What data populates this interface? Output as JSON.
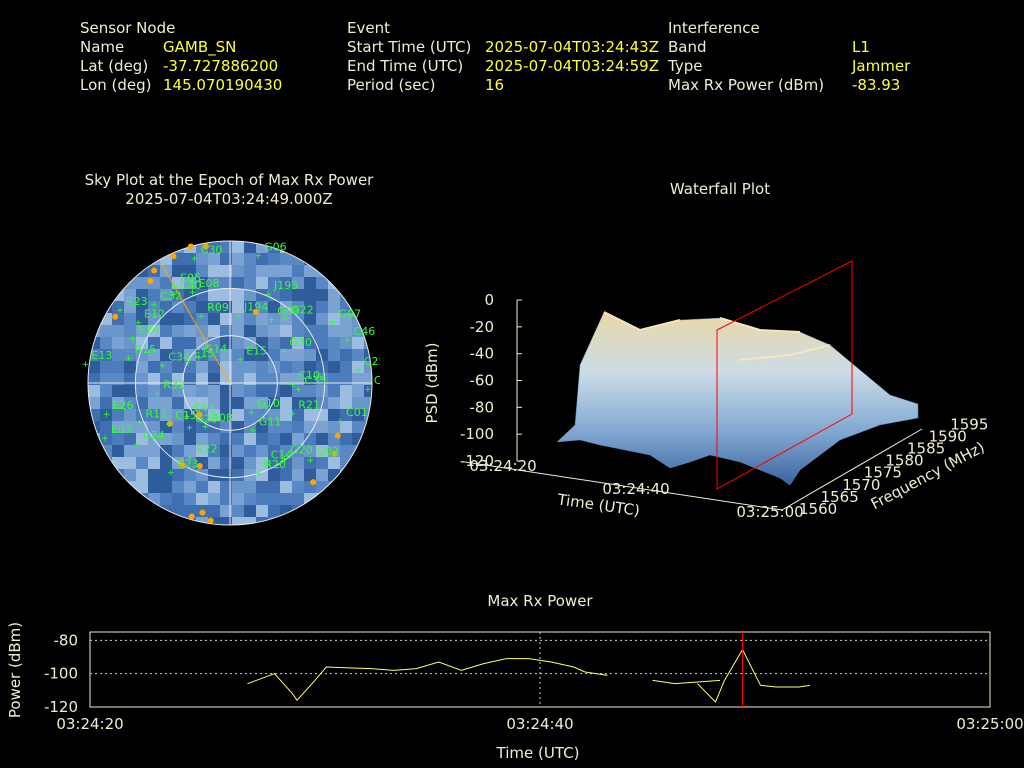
{
  "header": {
    "sensor": {
      "title": "Sensor Node",
      "name_label": "Name",
      "name": "GAMB_SN",
      "lat_label": "Lat (deg)",
      "lat": "-37.727886200",
      "lon_label": "Lon (deg)",
      "lon": "145.070190430"
    },
    "event": {
      "title": "Event",
      "start_label": "Start Time (UTC)",
      "start": "2025-07-04T03:24:43Z",
      "end_label": "End Time (UTC)",
      "end": "2025-07-04T03:24:59Z",
      "period_label": "Period (sec)",
      "period": "16"
    },
    "interference": {
      "title": "Interference",
      "band_label": "Band",
      "band": "L1",
      "type_label": "Type",
      "type": "Jammer",
      "maxrx_label": "Max Rx Power (dBm)",
      "maxrx": "-83.93"
    }
  },
  "colors": {
    "label": "#f0ecd0",
    "value": "#ffff33",
    "satellite": "#33ff33",
    "orange": "#ffa500",
    "marker": "#ff0000",
    "line": "#ffff66"
  },
  "chart_data": [
    {
      "type": "scatter",
      "name": "skyplot",
      "title": "Sky Plot at the Epoch of Max Rx Power",
      "subtitle": "2025-07-04T03:24:49.000Z",
      "satellites": [
        {
          "id": "G06",
          "az": 14,
          "el": 6
        },
        {
          "id": "C30",
          "az": 346,
          "el": 8
        },
        {
          "id": "J195",
          "az": 25,
          "el": 27
        },
        {
          "id": "E05",
          "az": 332,
          "el": 20
        },
        {
          "id": "C40",
          "az": 330,
          "el": 24
        },
        {
          "id": "E08",
          "az": 340,
          "el": 28
        },
        {
          "id": "R23",
          "az": 305,
          "el": 8
        },
        {
          "id": "E12",
          "az": 305,
          "el": 22
        },
        {
          "id": "C32",
          "az": 318,
          "el": 22
        },
        {
          "id": "G07",
          "az": 60,
          "el": 12
        },
        {
          "id": "G22",
          "az": 42,
          "el": 34
        },
        {
          "id": "G09",
          "az": 35,
          "el": 40
        },
        {
          "id": "C46",
          "az": 70,
          "el": 8
        },
        {
          "id": "J194",
          "az": 10,
          "el": 46
        },
        {
          "id": "R09",
          "az": 340,
          "el": 44
        },
        {
          "id": "C25",
          "az": 84,
          "el": 6
        },
        {
          "id": "G30",
          "az": 60,
          "el": 48
        },
        {
          "id": "E15",
          "az": 30,
          "el": 72
        },
        {
          "id": "E13",
          "az": 278,
          "el": 0
        },
        {
          "id": "E24",
          "az": 296,
          "el": 24
        },
        {
          "id": "R15",
          "az": 285,
          "el": 26
        },
        {
          "id": "G14",
          "az": 314,
          "el": 66
        },
        {
          "id": "E15",
          "az": 300,
          "el": 62
        },
        {
          "id": "C34",
          "az": 286,
          "el": 48
        },
        {
          "id": "R32",
          "az": 262,
          "el": 46
        },
        {
          "id": "C20",
          "az": 92,
          "el": 0
        },
        {
          "id": "C35",
          "az": 94,
          "el": 44
        },
        {
          "id": "C10",
          "az": 90,
          "el": 48
        },
        {
          "id": "R21",
          "az": 114,
          "el": 44
        },
        {
          "id": "C01",
          "az": 108,
          "el": 14
        },
        {
          "id": "R08",
          "az": 206,
          "el": 60
        },
        {
          "id": "G10",
          "az": 138,
          "el": 66
        },
        {
          "id": "G11",
          "az": 150,
          "el": 56
        },
        {
          "id": "G20",
          "az": 142,
          "el": 30
        },
        {
          "id": "G02",
          "az": 132,
          "el": 18
        },
        {
          "id": "R11",
          "az": 246,
          "el": 30
        },
        {
          "id": "C15",
          "az": 235,
          "el": 46
        },
        {
          "id": "G25",
          "az": 220,
          "el": 54
        },
        {
          "id": "C41",
          "az": 230,
          "el": 58
        },
        {
          "id": "E26",
          "az": 256,
          "el": 12
        },
        {
          "id": "E03",
          "az": 246,
          "el": 6
        },
        {
          "id": "C24",
          "az": 236,
          "el": 22
        },
        {
          "id": "C23",
          "az": 212,
          "el": 24
        },
        {
          "id": "R22",
          "az": 206,
          "el": 38
        },
        {
          "id": "R20",
          "az": 160,
          "el": 30
        },
        {
          "id": "C14",
          "az": 154,
          "el": 34
        }
      ],
      "interference_points": [
        {
          "az": 322,
          "el": 8
        },
        {
          "az": 326,
          "el": 4
        },
        {
          "az": 336,
          "el": 2
        },
        {
          "az": 344,
          "el": 0
        },
        {
          "az": 350,
          "el": 2
        },
        {
          "az": 300,
          "el": 6
        },
        {
          "az": 116,
          "el": 14
        },
        {
          "az": 124,
          "el": 10
        },
        {
          "az": 140,
          "el": 8
        },
        {
          "az": 188,
          "el": 2
        },
        {
          "az": 192,
          "el": 6
        },
        {
          "az": 196,
          "el": 2
        },
        {
          "az": 210,
          "el": 30
        },
        {
          "az": 236,
          "el": 44
        },
        {
          "az": 20,
          "el": 42
        },
        {
          "az": 200,
          "el": 34
        },
        {
          "az": 224,
          "el": 62
        }
      ],
      "jammer_direction_az": 330
    },
    {
      "type": "area",
      "name": "waterfall",
      "title": "Waterfall Plot",
      "xlabel": "Time (UTC)",
      "ylabel": "Frequency (MHz)",
      "zlabel": "PSD (dBm)",
      "x_ticks": [
        "03:24:20",
        "03:24:40",
        "03:25:00"
      ],
      "y_ticks": [
        "1560",
        "1565",
        "1570",
        "1575",
        "1580",
        "1585",
        "1590",
        "1595"
      ],
      "z_ticks": [
        "0",
        "-20",
        "-40",
        "-60",
        "-80",
        "-100",
        "-120"
      ],
      "xlim": [
        "03:24:20",
        "03:25:00"
      ],
      "ylim": [
        1560,
        1595
      ],
      "zlim": [
        -120,
        0
      ],
      "max_epoch": "03:24:49"
    },
    {
      "type": "line",
      "name": "maxrx",
      "title": "Max Rx Power",
      "xlabel": "Time (UTC)",
      "ylabel": "Power (dBm)",
      "x_ticks": [
        "03:24:20",
        "03:24:40",
        "03:25:00"
      ],
      "y_ticks": [
        "-80",
        "-100",
        "-120"
      ],
      "xlim": [
        0,
        40
      ],
      "ylim": [
        -120,
        -75
      ],
      "marker_x": 29,
      "segments": [
        [
          [
            7.0,
            -106
          ],
          [
            8.0,
            -101
          ],
          [
            8.2,
            -100
          ],
          [
            9.0,
            -112
          ],
          [
            9.2,
            -116
          ],
          [
            10.0,
            -104
          ],
          [
            10.5,
            -96
          ],
          [
            11.5,
            -96.5
          ],
          [
            12.5,
            -97
          ],
          [
            13.5,
            -98
          ],
          [
            14.5,
            -97
          ],
          [
            15.5,
            -93
          ],
          [
            16.5,
            -98
          ],
          [
            17.5,
            -94
          ],
          [
            18.5,
            -91
          ],
          [
            19.5,
            -91
          ],
          [
            20.5,
            -93
          ],
          [
            21.5,
            -96
          ],
          [
            22.0,
            -99
          ]
        ],
        [
          [
            22.0,
            -99
          ],
          [
            23.0,
            -101
          ]
        ],
        [
          [
            22.0,
            -100
          ]
        ],
        [
          [
            25.0,
            -104
          ],
          [
            26.0,
            -106
          ],
          [
            27.0,
            -105
          ],
          [
            28.0,
            -104
          ]
        ],
        [
          [
            27.0,
            -104
          ]
        ],
        [
          [
            27.0,
            -106
          ],
          [
            27.8,
            -117
          ],
          [
            28.2,
            -104
          ],
          [
            29.0,
            -85.5
          ],
          [
            29.8,
            -107
          ],
          [
            30.5,
            -108
          ],
          [
            31.5,
            -108
          ],
          [
            32.0,
            -107
          ]
        ]
      ]
    }
  ]
}
